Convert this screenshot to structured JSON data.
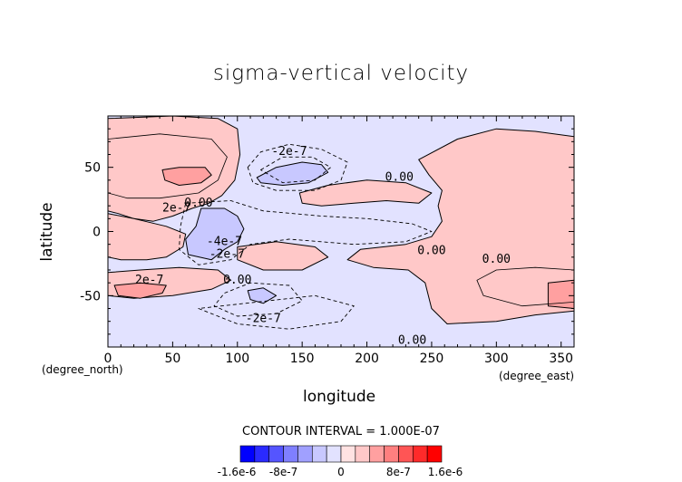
{
  "chart_data": {
    "type": "heatmap",
    "title": "sigma-vertical velocity",
    "xlabel": "longitude",
    "ylabel": "latitude",
    "x_unit": "(degree_east)",
    "y_unit": "(degree_north)",
    "xlim": [
      0,
      360
    ],
    "ylim": [
      -90,
      90
    ],
    "x_ticks": [
      0,
      50,
      100,
      150,
      200,
      250,
      300,
      350
    ],
    "y_ticks": [
      -50,
      0,
      50
    ],
    "x_tick_labels": [
      "0",
      "50",
      "100",
      "150",
      "200",
      "250",
      "300",
      "350"
    ],
    "y_tick_labels": [
      "-50",
      "0",
      "50"
    ],
    "contour_interval_text": "CONTOUR INTERVAL = 1.000E-07",
    "contour_labels": [
      {
        "text": "-2e-7",
        "lon": 140,
        "lat": 62
      },
      {
        "text": "0.00",
        "lon": 225,
        "lat": 42
      },
      {
        "text": "2e-7",
        "lon": 53,
        "lat": 18
      },
      {
        "text": "0.00",
        "lon": 70,
        "lat": 22
      },
      {
        "text": "-4e-7",
        "lon": 90,
        "lat": -8
      },
      {
        "text": "-2e-7",
        "lon": 92,
        "lat": -18
      },
      {
        "text": "0.00",
        "lon": 250,
        "lat": -15
      },
      {
        "text": "0.00",
        "lon": 300,
        "lat": -22
      },
      {
        "text": "2e-7",
        "lon": 32,
        "lat": -38
      },
      {
        "text": "0.00",
        "lon": 100,
        "lat": -38
      },
      {
        "text": "-2e-7",
        "lon": 120,
        "lat": -68
      },
      {
        "text": "0.00",
        "lon": 235,
        "lat": -85
      }
    ],
    "colorbar": {
      "colors": [
        "#0000ff",
        "#2a2aff",
        "#5555ff",
        "#7f7fff",
        "#a0a0ff",
        "#c8c8ff",
        "#e2e2ff",
        "#ffe2e2",
        "#ffc8c8",
        "#ffa0a0",
        "#ff7f7f",
        "#ff5555",
        "#ff2a2a",
        "#ff0000"
      ],
      "tick_labels": [
        "-1.6e-6",
        "-8e-7",
        "0",
        "8e-7",
        "1.6e-6"
      ],
      "tick_values": [
        -1.6e-06,
        -8e-07,
        0,
        8e-07,
        1.6e-06
      ]
    },
    "regions": {
      "positive_value": 2e-07,
      "negative_value": -2e-07,
      "strong_positive_value": 4e-07,
      "strong_negative_value": -4e-07,
      "background_value": -1e-07
    }
  }
}
